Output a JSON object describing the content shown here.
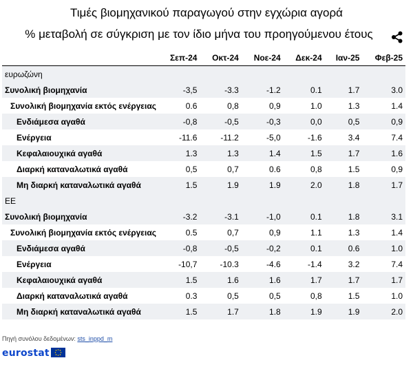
{
  "title": "Τιμές βιομηχανικού παραγωγού στην εγχώρια αγορά",
  "subtitle": "% μεταβολή σε σύγκριση με τον ίδιο μήνα του προηγούμενου έτους",
  "icons": {
    "share": "share-icon"
  },
  "table": {
    "columns": [
      "",
      "Σεπ-24",
      "Οκτ-24",
      "Νοε-24",
      "Δεκ-24",
      "Ιαν-25",
      "Φεβ-25"
    ],
    "rows": [
      {
        "label": "ευρωζώνη",
        "level": "group",
        "values": [
          "",
          "",
          "",
          "",
          "",
          ""
        ]
      },
      {
        "label": "Συνολική βιομηχανία",
        "level": 0,
        "values": [
          "-3,5",
          "-3.3",
          "-1.2",
          "0.1",
          "1.7",
          "3.0"
        ]
      },
      {
        "label": "Συνολική βιομηχανία εκτός ενέργειας",
        "level": 1,
        "values": [
          "0.6",
          "0,8",
          "0,9",
          "1.0",
          "1.3",
          "1.4"
        ]
      },
      {
        "label": "Ενδιάμεσα αγαθά",
        "level": 2,
        "values": [
          "-0,8",
          "-0,5",
          "-0,3",
          "0,0",
          "0,5",
          "0,9"
        ]
      },
      {
        "label": "Ενέργεια",
        "level": 2,
        "values": [
          "-11.6",
          "-11.2",
          "-5,0",
          "-1.6",
          "3.4",
          "7.4"
        ]
      },
      {
        "label": "Κεφαλαιουχικά αγαθά",
        "level": 2,
        "values": [
          "1.3",
          "1.3",
          "1.4",
          "1.5",
          "1.7",
          "1.6"
        ]
      },
      {
        "label": "Διαρκή καταναλωτικά αγαθά",
        "level": 2,
        "values": [
          "0,5",
          "0,7",
          "0.6",
          "0,8",
          "1.5",
          "0,9"
        ]
      },
      {
        "label": "Μη διαρκή καταναλωτικά αγαθά",
        "level": 2,
        "values": [
          "1.5",
          "1.9",
          "1.9",
          "2.0",
          "1.8",
          "1.7"
        ]
      },
      {
        "label": "ΕΕ",
        "level": "group",
        "values": [
          "",
          "",
          "",
          "",
          "",
          ""
        ]
      },
      {
        "label": "Συνολική βιομηχανία",
        "level": 0,
        "values": [
          "-3.2",
          "-3.1",
          "-1,0",
          "0.1",
          "1.8",
          "3.1"
        ]
      },
      {
        "label": "Συνολική βιομηχανία εκτός ενέργειας",
        "level": 1,
        "values": [
          "0.5",
          "0,7",
          "0,9",
          "1.1",
          "1.3",
          "1.4"
        ]
      },
      {
        "label": "Ενδιάμεσα αγαθά",
        "level": 2,
        "values": [
          "-0,8",
          "-0,5",
          "-0,2",
          "0.1",
          "0.6",
          "1.0"
        ]
      },
      {
        "label": "Ενέργεια",
        "level": 2,
        "values": [
          "-10,7",
          "-10.3",
          "-4.6",
          "-1.4",
          "3.2",
          "7.4"
        ]
      },
      {
        "label": "Κεφαλαιουχικά αγαθά",
        "level": 2,
        "values": [
          "1.5",
          "1.6",
          "1.6",
          "1.7",
          "1.7",
          "1.7"
        ]
      },
      {
        "label": "Διαρκή καταναλωτικά αγαθά",
        "level": 2,
        "values": [
          "0.3",
          "0,5",
          "0,5",
          "0,8",
          "1.5",
          "1.0"
        ]
      },
      {
        "label": "Μη διαρκή καταναλωτικά αγαθά",
        "level": 2,
        "values": [
          "1.5",
          "1.7",
          "1.8",
          "1.9",
          "1.9",
          "2.0"
        ]
      }
    ]
  },
  "source": {
    "prefix": "Πηγή συνόλου δεδομένων:",
    "link": "sts_inppd_m"
  },
  "logo": {
    "text": "eurostat"
  },
  "colors": {
    "band": "#eef0f3",
    "logo": "#0e47cb",
    "flag": "#003399",
    "stars": "#ffcc00"
  }
}
